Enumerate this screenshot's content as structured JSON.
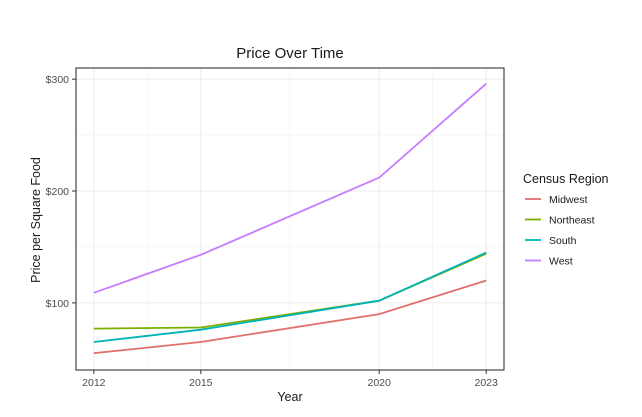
{
  "chart_data": {
    "type": "line",
    "title": "Price Over Time",
    "xlabel": "Year",
    "ylabel": "Price per Square Food",
    "x": [
      2012,
      2015,
      2020,
      2023
    ],
    "x_ticks": [
      2012,
      2015,
      2020,
      2023
    ],
    "x_tick_labels": [
      "2012",
      "2015",
      "2020",
      "2023"
    ],
    "xlim": [
      2011.5,
      2023.5
    ],
    "ylim": [
      40,
      310
    ],
    "y_ticks": [
      100,
      200,
      300
    ],
    "y_tick_labels": [
      "$100",
      "$200",
      "$300"
    ],
    "grid": true,
    "legend_title": "Census Region",
    "legend_position": "right",
    "series": [
      {
        "name": "Midwest",
        "color": "#e0706b",
        "values": [
          55,
          65,
          90,
          120
        ]
      },
      {
        "name": "Northeast",
        "color": "#7cae00",
        "values": [
          77,
          78,
          102,
          144
        ]
      },
      {
        "name": "South",
        "color": "#00b3b8",
        "values": [
          65,
          76,
          102,
          145
        ]
      },
      {
        "name": "West",
        "color": "#c77cff",
        "values": [
          109,
          143,
          212,
          296
        ]
      }
    ]
  }
}
